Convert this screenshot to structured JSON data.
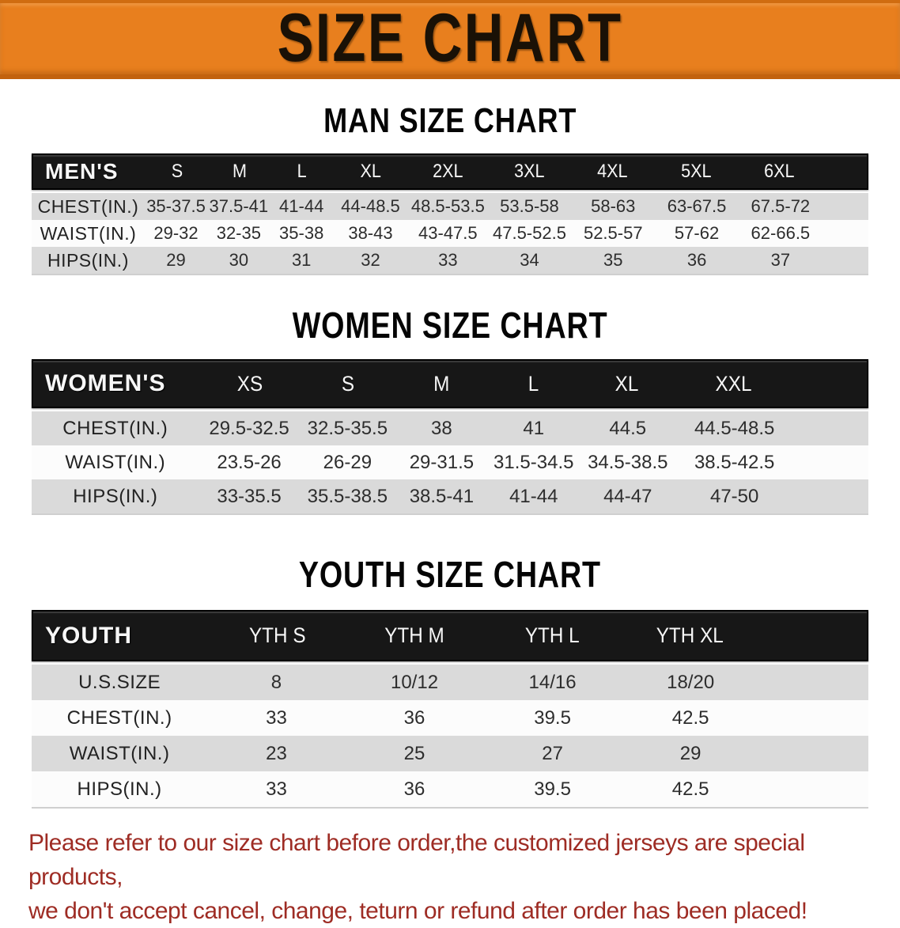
{
  "banner": {
    "title": "SIZE CHART",
    "bg_color": "#e87f1e",
    "text_color": "#1a1106"
  },
  "sections": [
    {
      "id": "men",
      "heading": "MAN SIZE CHART",
      "table": {
        "header_label": "MEN'S",
        "sizes": [
          "S",
          "M",
          "L",
          "XL",
          "2XL",
          "3XL",
          "4XL",
          "5XL",
          "6XL"
        ],
        "rows": [
          {
            "label": "CHEST(IN.)",
            "values": [
              "35-37.5",
              "37.5-41",
              "41-44",
              "44-48.5",
              "48.5-53.5",
              "53.5-58",
              "58-63",
              "63-67.5",
              "67.5-72"
            ]
          },
          {
            "label": "WAIST(IN.)",
            "values": [
              "29-32",
              "32-35",
              "35-38",
              "38-43",
              "43-47.5",
              "47.5-52.5",
              "52.5-57",
              "57-62",
              "62-66.5"
            ]
          },
          {
            "label": "HIPS(IN.)",
            "values": [
              "29",
              "30",
              "31",
              "32",
              "33",
              "34",
              "35",
              "36",
              "37"
            ]
          }
        ]
      }
    },
    {
      "id": "women",
      "heading": "WOMEN SIZE CHART",
      "table": {
        "header_label": "WOMEN'S",
        "sizes": [
          "XS",
          "S",
          "M",
          "L",
          "XL",
          "XXL"
        ],
        "rows": [
          {
            "label": "CHEST(IN.)",
            "values": [
              "29.5-32.5",
              "32.5-35.5",
              "38",
              "41",
              "44.5",
              "44.5-48.5"
            ]
          },
          {
            "label": "WAIST(IN.)",
            "values": [
              "23.5-26",
              "26-29",
              "29-31.5",
              "31.5-34.5",
              "34.5-38.5",
              "38.5-42.5"
            ]
          },
          {
            "label": "HIPS(IN.)",
            "values": [
              "33-35.5",
              "35.5-38.5",
              "38.5-41",
              "41-44",
              "44-47",
              "47-50"
            ]
          }
        ]
      }
    },
    {
      "id": "youth",
      "heading": "YOUTH SIZE CHART",
      "table": {
        "header_label": "YOUTH",
        "sizes": [
          "YTH S",
          "YTH M",
          "YTH L",
          "YTH XL"
        ],
        "rows": [
          {
            "label": "U.S.SIZE",
            "values": [
              "8",
              "10/12",
              "14/16",
              "18/20"
            ]
          },
          {
            "label": "CHEST(IN.)",
            "values": [
              "33",
              "36",
              "39.5",
              "42.5"
            ]
          },
          {
            "label": "WAIST(IN.)",
            "values": [
              "23",
              "25",
              "27",
              "29"
            ]
          },
          {
            "label": "HIPS(IN.)",
            "values": [
              "33",
              "36",
              "39.5",
              "42.5"
            ]
          }
        ]
      }
    }
  ],
  "disclaimer": {
    "lines": [
      "Please refer to our size chart before order,the customized jerseys are special products,",
      "we don't accept cancel, change, teturn or refund after order has been placed!"
    ],
    "color": "#9e2c24"
  },
  "palette": {
    "header_bar_bg": "#171717",
    "header_bar_text": "#f7f7f7",
    "row_shaded": "#dadada",
    "row_plain": "#fcfcfc"
  }
}
